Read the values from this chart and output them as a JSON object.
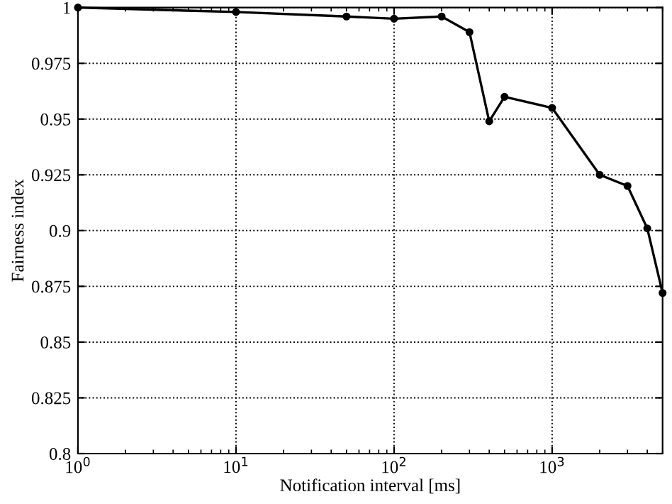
{
  "chart_data": {
    "type": "line",
    "xlabel": "Notification interval [ms]",
    "ylabel": "Fairness index",
    "x": [
      1,
      10,
      50,
      100,
      200,
      300,
      400,
      500,
      1000,
      2000,
      3000,
      4000,
      5000
    ],
    "series": [
      {
        "color": "#000000",
        "values": [
          1.0,
          0.998,
          0.996,
          0.995,
          0.996,
          0.989,
          0.949,
          0.96,
          0.955,
          0.925,
          0.92,
          0.901,
          0.872
        ]
      }
    ],
    "log": "x",
    "xlim": [
      1,
      5000
    ],
    "ylim": [
      0.8,
      1
    ],
    "xticks": [
      {
        "value": 1,
        "label": "10$^{0}$"
      },
      {
        "value": 10,
        "label": "10$^{1}$"
      },
      {
        "value": 100,
        "label": "10$^{2}$"
      },
      {
        "value": 1000,
        "label": "10$^{3}$"
      }
    ],
    "yticks": [
      0.8,
      0.825,
      0.85,
      0.875,
      0.9,
      0.925,
      0.95,
      0.975,
      1
    ],
    "grid": true,
    "marker": "circle",
    "line_style": "solid"
  }
}
